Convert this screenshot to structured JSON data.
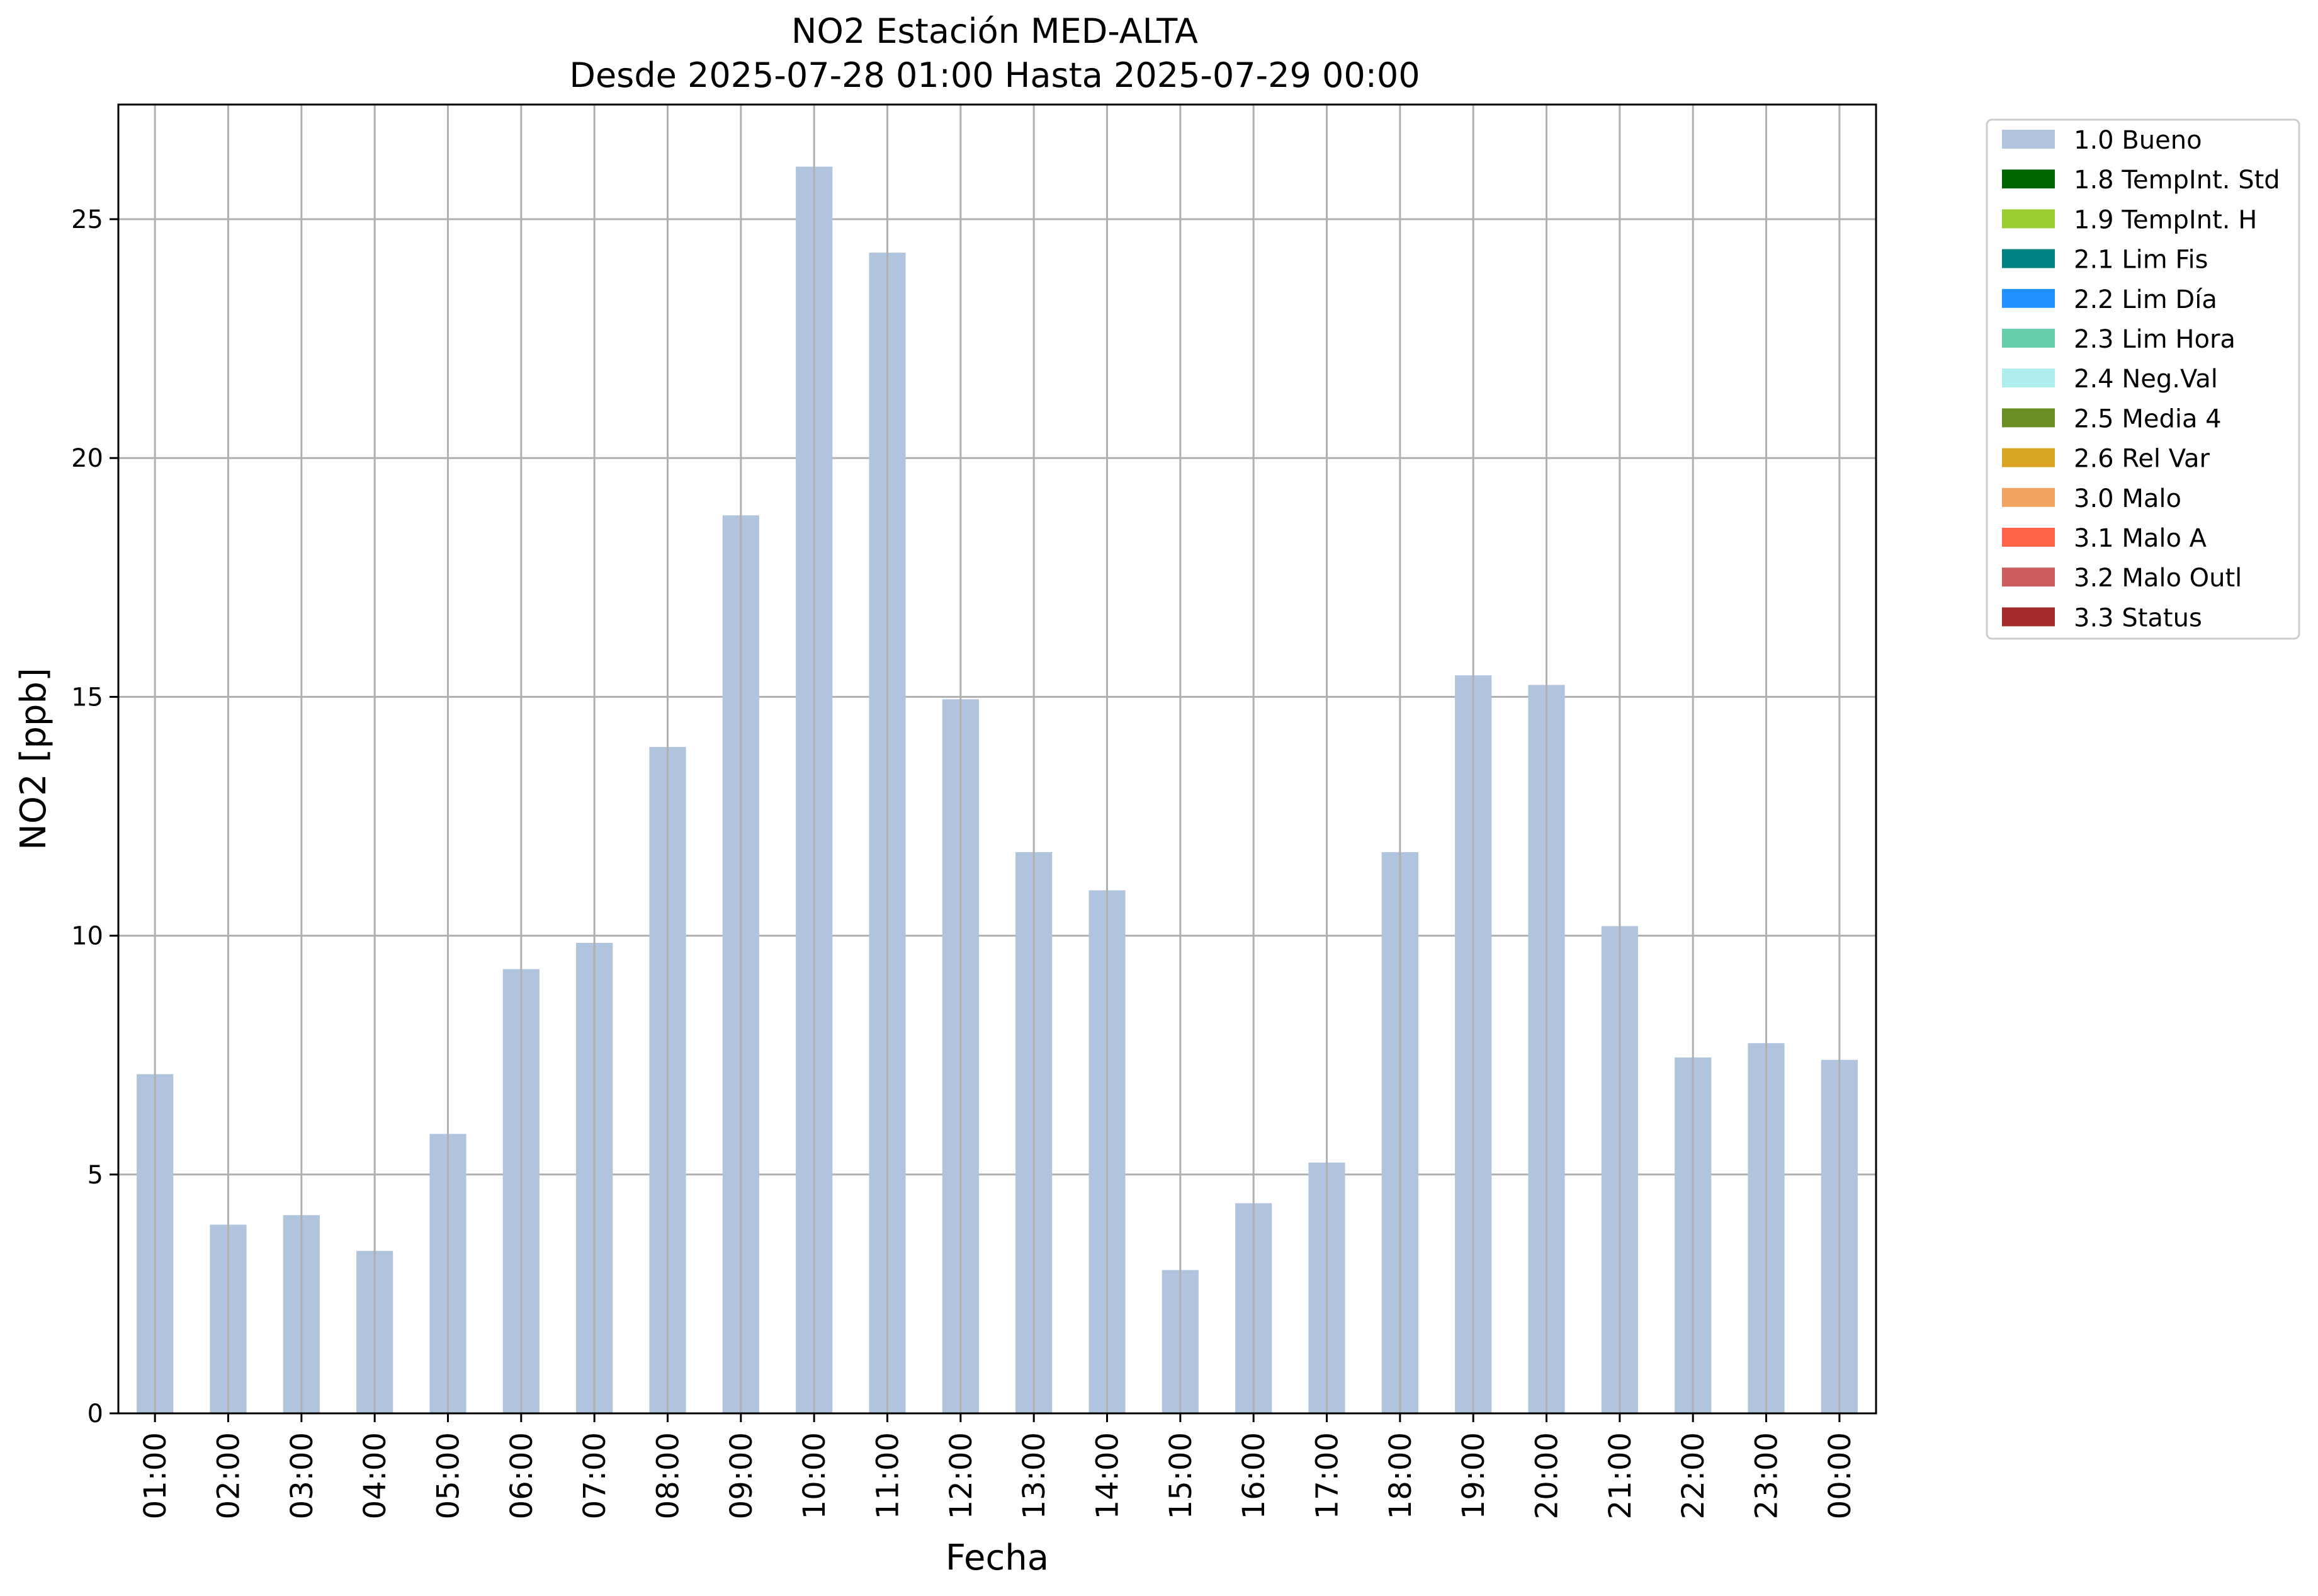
{
  "chart_data": {
    "type": "bar",
    "title": "NO2 Estación MED-ALTA",
    "subtitle": "Desde 2025-07-28 01:00 Hasta 2025-07-29 00:00",
    "xlabel": "Fecha",
    "ylabel": "NO2 [ppb]",
    "ylim": [
      0,
      27.4
    ],
    "yticks": [
      0,
      5,
      10,
      15,
      20,
      25
    ],
    "grid": true,
    "legend_position": "outside-top-right",
    "categories": [
      "01:00",
      "02:00",
      "03:00",
      "04:00",
      "05:00",
      "06:00",
      "07:00",
      "08:00",
      "09:00",
      "10:00",
      "11:00",
      "12:00",
      "13:00",
      "14:00",
      "15:00",
      "16:00",
      "17:00",
      "18:00",
      "19:00",
      "20:00",
      "21:00",
      "22:00",
      "23:00",
      "00:00"
    ],
    "series": [
      {
        "name": "1.0 Bueno",
        "color": "#b0c4de",
        "values": [
          7.1,
          3.95,
          4.15,
          3.4,
          5.85,
          9.3,
          9.85,
          13.95,
          18.8,
          26.1,
          24.3,
          14.95,
          11.75,
          10.95,
          3.0,
          4.4,
          5.25,
          11.75,
          15.45,
          15.25,
          10.2,
          7.45,
          7.75,
          7.4
        ]
      }
    ],
    "legend": [
      {
        "label": "1.0 Bueno",
        "color": "#b0c4de"
      },
      {
        "label": "1.8 TempInt. Std",
        "color": "#006400"
      },
      {
        "label": "1.9 TempInt. H",
        "color": "#9acd32"
      },
      {
        "label": "2.1 Lim Fis",
        "color": "#008080"
      },
      {
        "label": "2.2 Lim Día",
        "color": "#1e90ff"
      },
      {
        "label": "2.3 Lim Hora",
        "color": "#66cdaa"
      },
      {
        "label": "2.4 Neg.Val",
        "color": "#afeeee"
      },
      {
        "label": "2.5 Media 4",
        "color": "#6b8e23"
      },
      {
        "label": "2.6 Rel Var",
        "color": "#daa520"
      },
      {
        "label": "3.0 Malo",
        "color": "#f4a460"
      },
      {
        "label": "3.1 Malo A",
        "color": "#ff6347"
      },
      {
        "label": "3.2 Malo Outl",
        "color": "#cd5c5c"
      },
      {
        "label": "3.3 Status",
        "color": "#a52a2a"
      }
    ]
  }
}
